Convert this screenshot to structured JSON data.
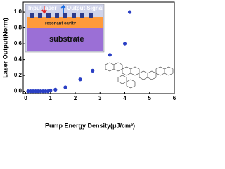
{
  "chart_data": {
    "type": "scatter",
    "x_label": "Pump Energy Density(μJ/cm²)",
    "y_label": "Laser Output(Norm)",
    "inset_labels": [
      "Input laser",
      "Output Signal",
      "resonant cavity",
      "substrate"
    ],
    "series": [
      {
        "name": "Laser output",
        "color": "#2a3fc4",
        "x": [
          0.1,
          0.2,
          0.3,
          0.4,
          0.5,
          0.6,
          0.7,
          0.8,
          0.9,
          1.0,
          1.2,
          1.6,
          2.2,
          2.7,
          3.4,
          4.0,
          4.2
        ],
        "values": [
          0.0,
          0.0,
          0.0,
          0.0,
          0.0,
          0.0,
          0.0,
          0.0,
          0.0,
          0.01,
          0.02,
          0.05,
          0.15,
          0.26,
          0.46,
          0.6,
          1.0
        ]
      }
    ],
    "xlim": [
      -0.1,
      6
    ],
    "ylim": [
      -0.03,
      1.125
    ],
    "xticks": [
      0,
      1,
      2,
      3,
      4,
      5,
      6
    ],
    "yticks": [
      {
        "value": 0,
        "label": "0.0"
      },
      {
        "value": 0.2,
        "label": "0.2"
      },
      {
        "value": 0.4,
        "label": "0.4"
      },
      {
        "value": 0.6,
        "label": "0.6"
      },
      {
        "value": 0.8,
        "label": "0.8"
      },
      {
        "value": 1.0,
        "label": "1.0"
      }
    ]
  }
}
